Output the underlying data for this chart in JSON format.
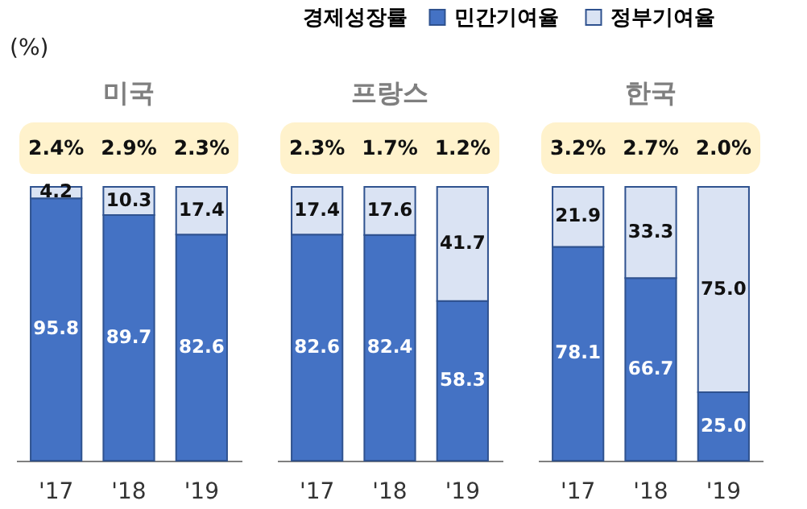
{
  "chart_data": [
    {
      "type": "bar",
      "stacked": true,
      "title": "미국",
      "ylabel": "(%)",
      "categories": [
        "'17",
        "'18",
        "'19"
      ],
      "series": [
        {
          "name": "민간기여율",
          "color": "#4472c4",
          "values": [
            95.8,
            89.7,
            82.6
          ],
          "value_labels": [
            "95.8",
            "89.7",
            "82.6"
          ]
        },
        {
          "name": "정부기여율",
          "color": "#dae3f3",
          "values": [
            4.2,
            10.3,
            17.4
          ],
          "value_labels": [
            "4.2",
            "10.3",
            "17.4"
          ]
        }
      ],
      "annotations": [
        "2.4%",
        "2.9%",
        "2.3%"
      ],
      "legend": "top right",
      "legend_title": "경제성장률"
    },
    {
      "type": "bar",
      "stacked": true,
      "title": "프랑스",
      "categories": [
        "'17",
        "'18",
        "'19"
      ],
      "series": [
        {
          "name": "민간기여율",
          "color": "#4472c4",
          "values": [
            82.6,
            82.4,
            58.3
          ],
          "value_labels": [
            "82.6",
            "82.4",
            "58.3"
          ]
        },
        {
          "name": "정부기여율",
          "color": "#dae3f3",
          "values": [
            17.4,
            17.6,
            41.7
          ],
          "value_labels": [
            "17.4",
            "17.6",
            "41.7"
          ]
        }
      ],
      "annotations": [
        "2.3%",
        "1.7%",
        "1.2%"
      ],
      "legend": "top right"
    },
    {
      "type": "bar",
      "stacked": true,
      "title": "한국",
      "categories": [
        "'17",
        "'18",
        "'19"
      ],
      "series": [
        {
          "name": "민간기여율",
          "color": "#4472c4",
          "values": [
            78.1,
            66.7,
            25.0
          ],
          "value_labels": [
            "78.1",
            "66.7",
            "25.0"
          ]
        },
        {
          "name": "정부기여율",
          "color": "#dae3f3",
          "values": [
            21.9,
            33.3,
            75.0
          ],
          "value_labels": [
            "21.9",
            "33.3",
            "75.0"
          ]
        }
      ],
      "annotations": [
        "3.2%",
        "2.7%",
        "2.0%"
      ],
      "legend": "top right"
    }
  ]
}
